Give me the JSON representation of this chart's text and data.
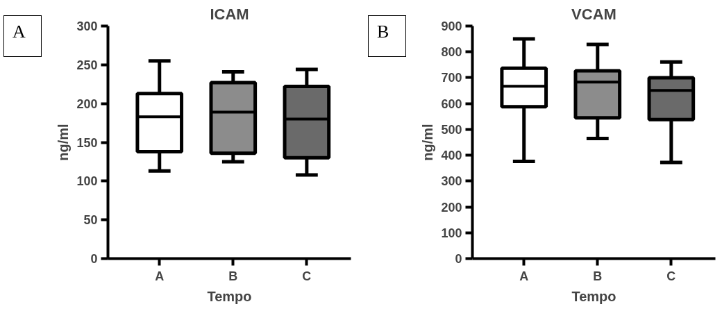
{
  "chart_data": [
    {
      "type": "box",
      "title": "ICAM",
      "xlabel": "Tempo",
      "ylabel": "ng/ml",
      "annotations": [
        "A"
      ],
      "categories": [
        "A",
        "B",
        "C"
      ],
      "colors": [
        "#ffffff",
        "#8c8c8c",
        "#6a6a6a"
      ],
      "boxes": [
        {
          "low": 113,
          "q1": 138,
          "median": 183,
          "q3": 213,
          "high": 255
        },
        {
          "low": 125,
          "q1": 136,
          "median": 189,
          "q3": 227,
          "high": 241
        },
        {
          "low": 108,
          "q1": 130,
          "median": 180,
          "q3": 222,
          "high": 244
        }
      ],
      "ylim": [
        0,
        300
      ],
      "yticks": [
        0,
        50,
        100,
        150,
        200,
        250,
        300
      ],
      "grid": false
    },
    {
      "type": "box",
      "title": "VCAM",
      "xlabel": "Tempo",
      "ylabel": "ng/ml",
      "annotations": [
        "B"
      ],
      "categories": [
        "A",
        "B",
        "C"
      ],
      "colors": [
        "#ffffff",
        "#8c8c8c",
        "#6a6a6a"
      ],
      "boxes": [
        {
          "low": 376,
          "q1": 588,
          "median": 667,
          "q3": 737,
          "high": 850
        },
        {
          "low": 465,
          "q1": 545,
          "median": 683,
          "q3": 727,
          "high": 829
        },
        {
          "low": 372,
          "q1": 538,
          "median": 651,
          "q3": 700,
          "high": 761
        }
      ],
      "ylim": [
        0,
        900
      ],
      "yticks": [
        0,
        100,
        200,
        300,
        400,
        500,
        600,
        700,
        800,
        900
      ],
      "grid": false
    }
  ]
}
